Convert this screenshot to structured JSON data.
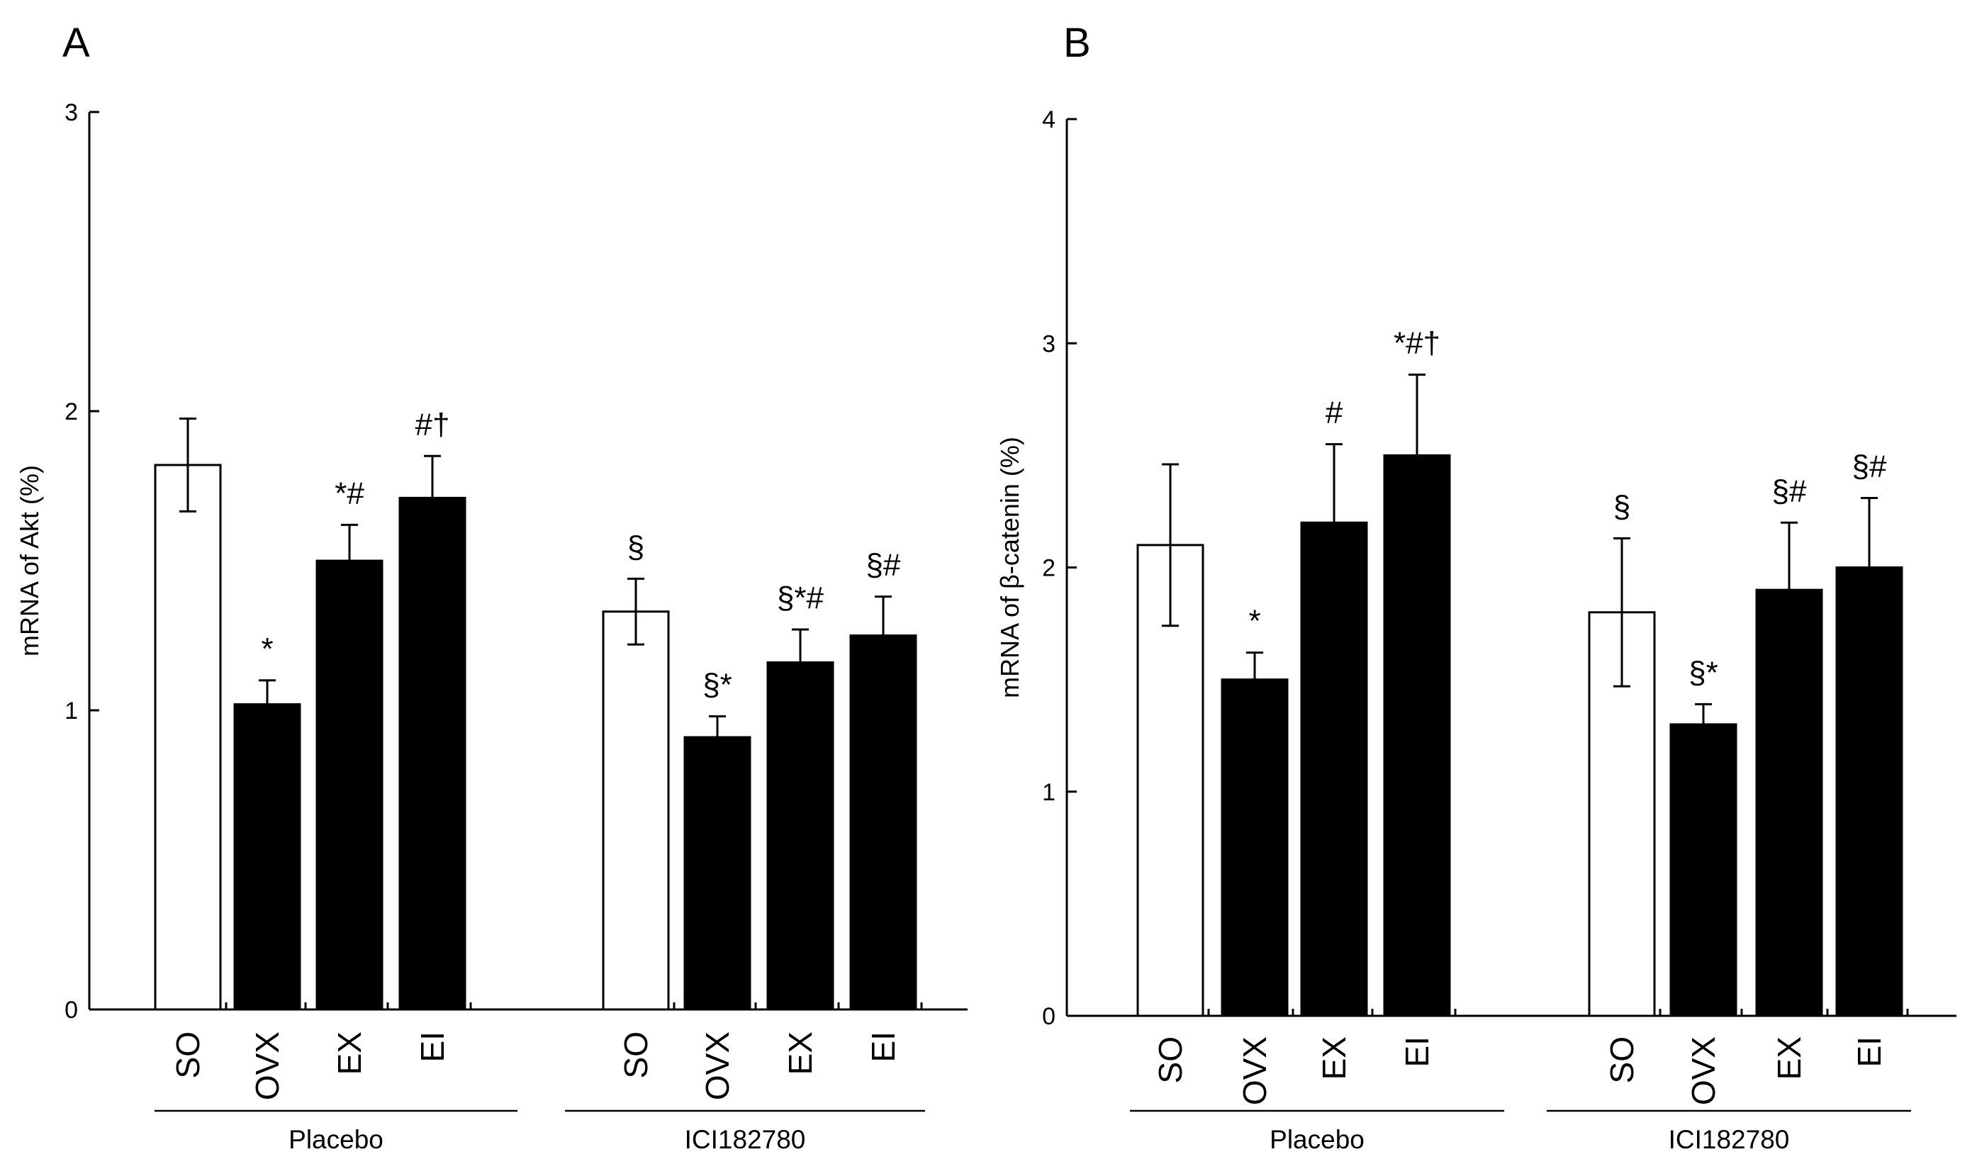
{
  "chart_data": [
    {
      "type": "bar",
      "panel_label": "A",
      "ylabel": "mRNA of Akt (%)",
      "ylim": [
        0,
        3
      ],
      "yticks": [
        "0",
        "1",
        "2",
        "3"
      ],
      "groups": [
        {
          "name": "Placebo",
          "bars": [
            {
              "category": "SO",
              "value": 1.82,
              "error": 0.155,
              "annotation": "",
              "fill": "white"
            },
            {
              "category": "OVX",
              "value": 1.02,
              "error": 0.08,
              "annotation": "*",
              "fill": "black"
            },
            {
              "category": "EX",
              "value": 1.5,
              "error": 0.12,
              "annotation": "*#",
              "fill": "black"
            },
            {
              "category": "EI",
              "value": 1.71,
              "error": 0.14,
              "annotation": "#†",
              "fill": "black"
            }
          ]
        },
        {
          "name": "ICI182780",
          "bars": [
            {
              "category": "SO",
              "value": 1.33,
              "error": 0.11,
              "annotation": "§",
              "fill": "white"
            },
            {
              "category": "OVX",
              "value": 0.91,
              "error": 0.07,
              "annotation": "§*",
              "fill": "black"
            },
            {
              "category": "EX",
              "value": 1.16,
              "error": 0.11,
              "annotation": "§*#",
              "fill": "black"
            },
            {
              "category": "EI",
              "value": 1.25,
              "error": 0.13,
              "annotation": "§#",
              "fill": "black"
            }
          ]
        }
      ]
    },
    {
      "type": "bar",
      "panel_label": "B",
      "ylabel": "mRNA of β-catenin (%)",
      "ylim": [
        0,
        4
      ],
      "yticks": [
        "0",
        "1",
        "2",
        "3",
        "4"
      ],
      "groups": [
        {
          "name": "Placebo",
          "bars": [
            {
              "category": "SO",
              "value": 2.1,
              "error": 0.36,
              "annotation": "",
              "fill": "white"
            },
            {
              "category": "OVX",
              "value": 1.5,
              "error": 0.12,
              "annotation": "*",
              "fill": "black"
            },
            {
              "category": "EX",
              "value": 2.2,
              "error": 0.35,
              "annotation": "#",
              "fill": "black"
            },
            {
              "category": "EI",
              "value": 2.5,
              "error": 0.36,
              "annotation": "*#†",
              "fill": "black"
            }
          ]
        },
        {
          "name": "ICI182780",
          "bars": [
            {
              "category": "SO",
              "value": 1.8,
              "error": 0.33,
              "annotation": "§",
              "fill": "white"
            },
            {
              "category": "OVX",
              "value": 1.3,
              "error": 0.09,
              "annotation": "§*",
              "fill": "black"
            },
            {
              "category": "EX",
              "value": 1.9,
              "error": 0.3,
              "annotation": "§#",
              "fill": "black"
            },
            {
              "category": "EI",
              "value": 2.0,
              "error": 0.31,
              "annotation": "§#",
              "fill": "black"
            }
          ]
        }
      ]
    }
  ]
}
